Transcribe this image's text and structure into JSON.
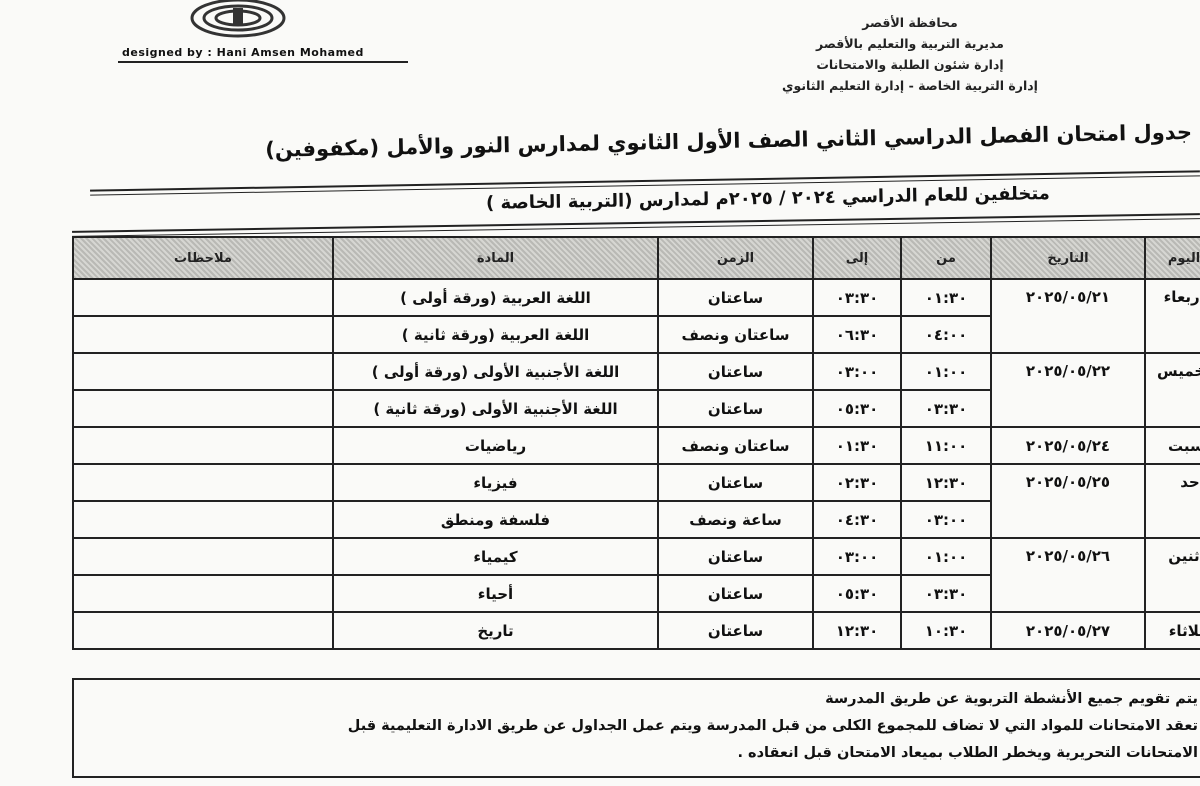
{
  "header": {
    "designer_credit": "designed by : Hani Amsen Mohamed",
    "authority_lines": [
      "محافظة الأقصر",
      "مديرية التربية والتعليم بالأقصر",
      "إدارة شئون الطلبة والامتحانات",
      "إدارة التربية الخاصة - إدارة التعليم الثانوي"
    ]
  },
  "title": "جدول امتحان الفصل الدراسي الثاني الصف الأول الثانوي لمدارس النور والأمل (مكفوفين)",
  "subtitle": "متخلفين للعام الدراسي ٢٠٢٤ / ٢٠٢٥م لمدارس  (التربية الخاصة )",
  "table": {
    "headers": {
      "day": "اليوم",
      "date": "التاريخ",
      "from": "من",
      "to": "إلى",
      "duration": "الزمن",
      "subject": "المادة",
      "notes": "ملاحظات"
    },
    "days": [
      {
        "day": "الأربعاء",
        "date": "٢٠٢٥/٠٥/٢١",
        "rows": [
          {
            "from": "٠١:٣٠",
            "to": "٠٣:٣٠",
            "duration": "ساعتان",
            "subject": "اللغة العربية (ورقة أولى )"
          },
          {
            "from": "٠٤:٠٠",
            "to": "٠٦:٣٠",
            "duration": "ساعتان ونصف",
            "subject": "اللغة العربية (ورقة ثانية )"
          }
        ]
      },
      {
        "day": "الخميس",
        "date": "٢٠٢٥/٠٥/٢٢",
        "rows": [
          {
            "from": "٠١:٠٠",
            "to": "٠٣:٠٠",
            "duration": "ساعتان",
            "subject": "اللغة الأجنبية الأولى (ورقة أولى )"
          },
          {
            "from": "٠٣:٣٠",
            "to": "٠٥:٣٠",
            "duration": "ساعتان",
            "subject": "اللغة الأجنبية الأولى (ورقة ثانية )"
          }
        ]
      },
      {
        "day": "السبت",
        "date": "٢٠٢٥/٠٥/٢٤",
        "rows": [
          {
            "from": "١١:٠٠",
            "to": "٠١:٣٠",
            "duration": "ساعتان ونصف",
            "subject": "رياضيات"
          }
        ]
      },
      {
        "day": "الأحد",
        "date": "٢٠٢٥/٠٥/٢٥",
        "rows": [
          {
            "from": "١٢:٣٠",
            "to": "٠٢:٣٠",
            "duration": "ساعتان",
            "subject": "فيزياء"
          },
          {
            "from": "٠٣:٠٠",
            "to": "٠٤:٣٠",
            "duration": "ساعة ونصف",
            "subject": "فلسفة ومنطق"
          }
        ]
      },
      {
        "day": "الاثنين",
        "date": "٢٠٢٥/٠٥/٢٦",
        "rows": [
          {
            "from": "٠١:٠٠",
            "to": "٠٣:٠٠",
            "duration": "ساعتان",
            "subject": "كيمياء"
          },
          {
            "from": "٠٣:٣٠",
            "to": "٠٥:٣٠",
            "duration": "ساعتان",
            "subject": "أحياء"
          }
        ]
      },
      {
        "day": "الثلاثاء",
        "date": "٢٠٢٥/٠٥/٢٧",
        "rows": [
          {
            "from": "١٠:٣٠",
            "to": "١٢:٣٠",
            "duration": "ساعتان",
            "subject": "تاريخ"
          }
        ]
      }
    ]
  },
  "footer_notes": [
    "يتم تقويم جميع الأنشطة التربوية عن طريق المدرسة",
    "تعقد الامتحانات للمواد التي لا تضاف للمجموع الكلى من قبل المدرسة ويتم عمل الجداول عن طريق الادارة التعليمية قبل",
    "الامتحانات التحريرية ويخطر الطلاب بميعاد الامتحان قبل انعقاده ."
  ]
}
